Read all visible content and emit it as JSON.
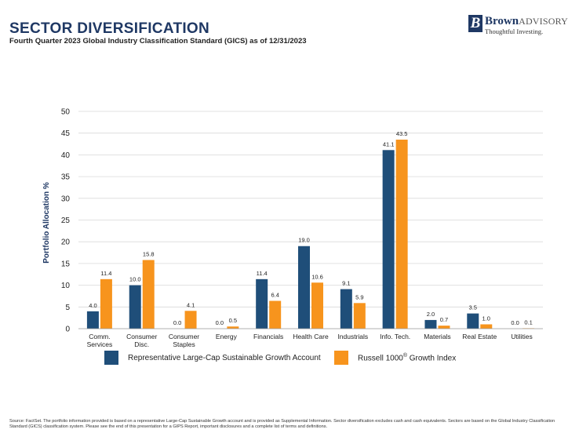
{
  "header": {
    "title": "SECTOR DIVERSIFICATION",
    "subtitle": "Fourth Quarter 2023 Global Industry Classification Standard (GICS) as of 12/31/2023"
  },
  "logo": {
    "mark": "B",
    "name_bold": "Brown",
    "name_rest": "ADVISORY",
    "tagline": "Thoughtful Investing."
  },
  "colors": {
    "account": "#1f4e79",
    "index": "#f7941d",
    "title": "#1f3864"
  },
  "chart_data": {
    "type": "bar",
    "ylabel": "Portfolio Allocation %",
    "ylim": [
      0,
      50
    ],
    "yticks": [
      0,
      5,
      10,
      15,
      20,
      25,
      30,
      35,
      40,
      45,
      50
    ],
    "grid": true,
    "legend_position": "bottom",
    "categories": [
      [
        "Comm.",
        "Services"
      ],
      [
        "Consumer",
        "Disc."
      ],
      [
        "Consumer",
        "Staples"
      ],
      [
        "Energy"
      ],
      [
        "Financials"
      ],
      [
        "Health Care"
      ],
      [
        "Industrials"
      ],
      [
        "Info. Tech."
      ],
      [
        "Materials"
      ],
      [
        "Real Estate"
      ],
      [
        "Utilities"
      ]
    ],
    "series": [
      {
        "name": "Representative Large-Cap Sustainable Growth Account",
        "values": [
          4.0,
          10.0,
          0.0,
          0.0,
          11.4,
          19.0,
          9.1,
          41.1,
          2.0,
          3.5,
          0.0
        ],
        "labels": [
          "4.0",
          "10.0",
          "0.0",
          "0.0",
          "11.4",
          "19.0",
          "9.1",
          "41.1",
          "2.0",
          "3.5",
          "0.0"
        ]
      },
      {
        "name": "Russell 1000® Growth Index",
        "name_main": "Russell 1000",
        "name_sup": "®",
        "name_tail": " Growth Index",
        "values": [
          11.4,
          15.8,
          4.1,
          0.5,
          6.4,
          10.6,
          5.9,
          43.5,
          0.7,
          1.0,
          0.1
        ],
        "labels": [
          "11.4",
          "15.8",
          "4.1",
          "0.5",
          "6.4",
          "10.6",
          "5.9",
          "43.5",
          "0.7",
          "1.0",
          "0.1"
        ]
      }
    ]
  },
  "footnote": "Source: FactSet. The portfolio information provided is based on a representative Large-Cap Sustainable Growth account and is provided as Supplemental Information. Sector diversification excludes cash and cash equivalents. Sectors are based on the Global Industry Classification Standard (GICS) classification system. Please see the end of this presentation for a GIPS Report, important disclosures and a complete list of terms and definitions."
}
